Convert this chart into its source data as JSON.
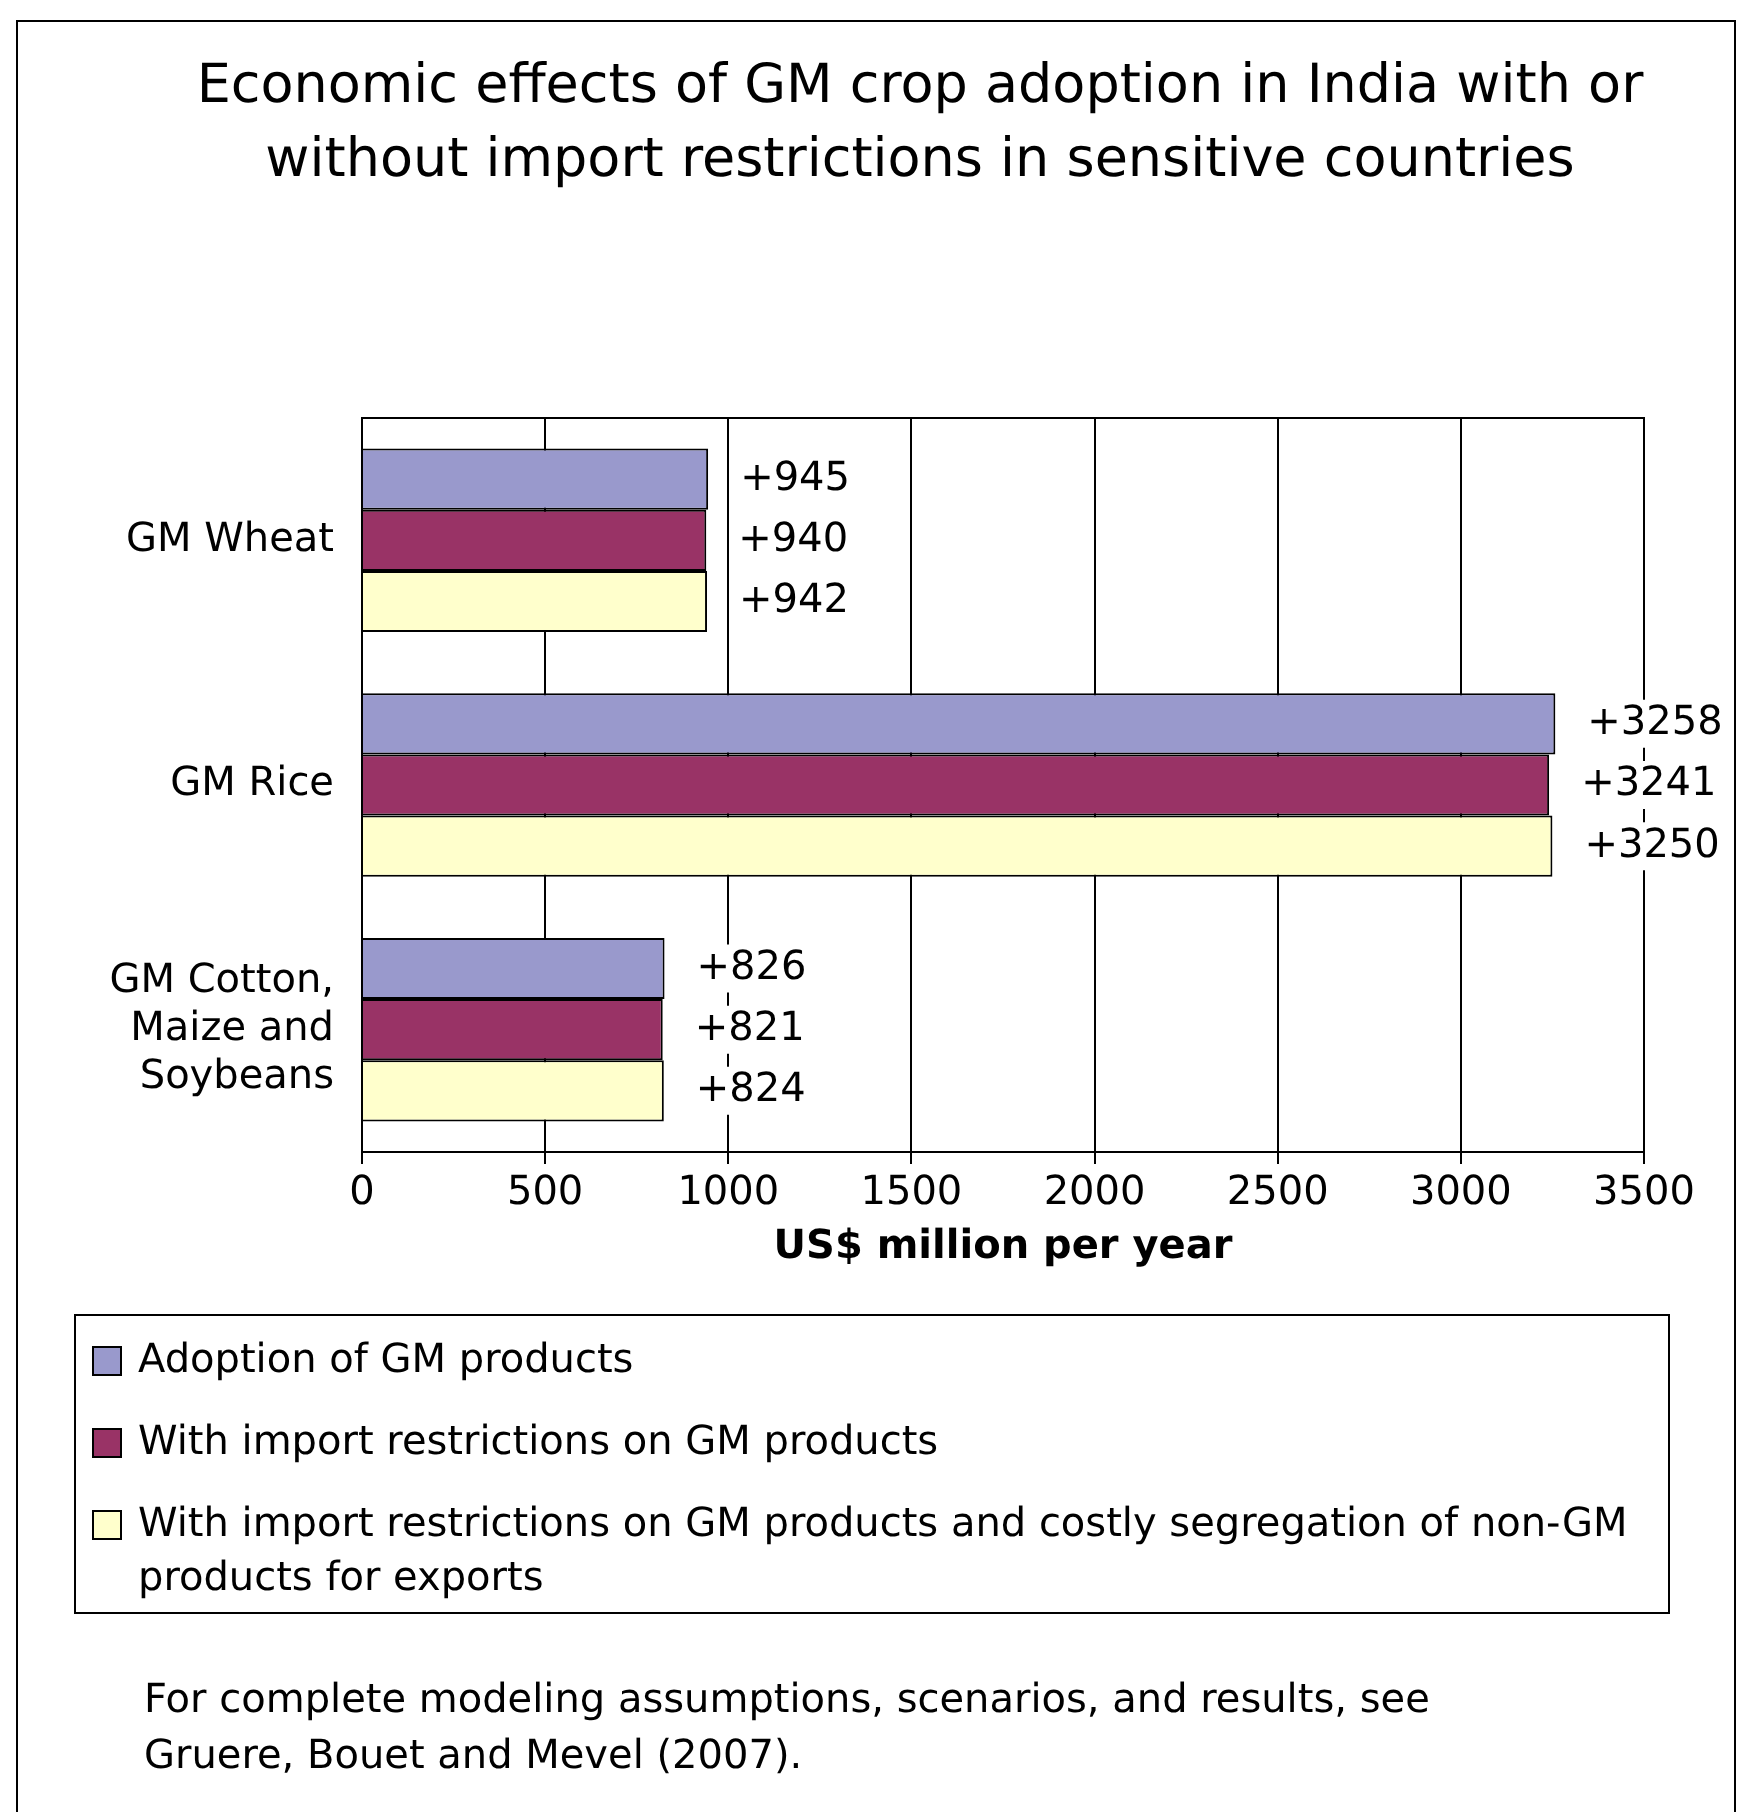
{
  "chart_data": {
    "type": "bar",
    "orientation": "horizontal",
    "title": "Economic effects of GM crop adoption in India with or without import restrictions in sensitive countries",
    "categories": [
      "GM Wheat",
      "GM Rice",
      "GM Cotton, Maize and Soybeans"
    ],
    "series": [
      {
        "name": "Adoption of GM products",
        "color": "#9999cc",
        "values": [
          945,
          3258,
          826
        ],
        "value_labels": [
          "+945",
          "+3258",
          "+826"
        ]
      },
      {
        "name": "With import restrictions on GM products",
        "color": "#993366",
        "values": [
          940,
          3241,
          821
        ],
        "value_labels": [
          "+940",
          "+3241",
          "+821"
        ]
      },
      {
        "name": "With import restrictions on GM products and costly segregation of non-GM products for exports",
        "color": "#ffffcc",
        "values": [
          942,
          3250,
          824
        ],
        "value_labels": [
          "+942",
          "+3250",
          "+824"
        ]
      }
    ],
    "xlabel": "US$ million per year",
    "xlim": [
      0,
      3500
    ],
    "xticks": [
      0,
      500,
      1000,
      1500,
      2000,
      2500,
      3000,
      3500
    ],
    "grid": "x",
    "legend": "bottom",
    "annotations": [
      "For complete modeling assumptions, scenarios, and results, see Gruere, Bouet and Mevel (2007)."
    ]
  }
}
